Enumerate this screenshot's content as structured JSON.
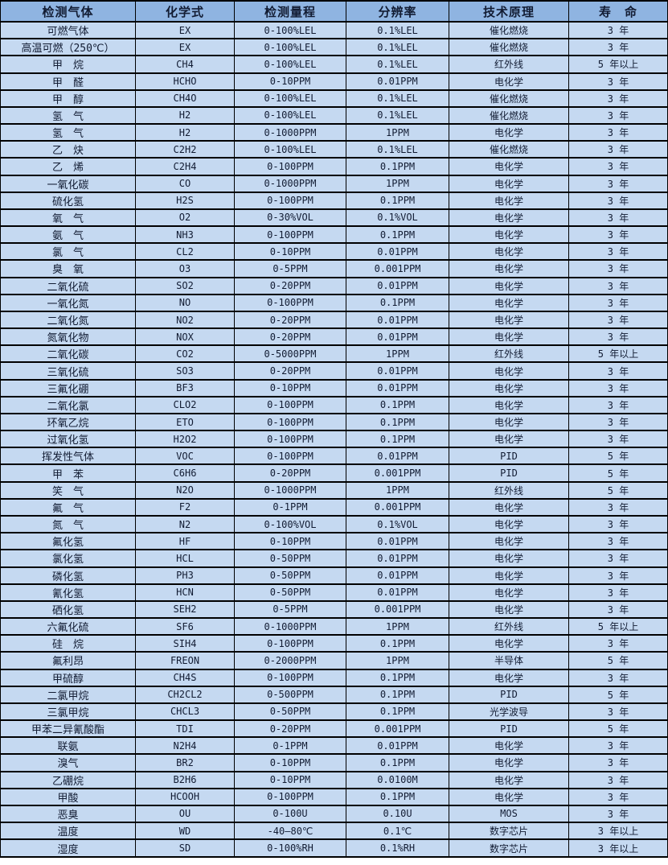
{
  "table": {
    "columns": [
      "检测气体",
      "化学式",
      "检测量程",
      "分辨率",
      "技术原理",
      "寿　命"
    ],
    "rows": [
      [
        "可燃气体",
        "EX",
        "0-100%LEL",
        "0.1%LEL",
        "催化燃烧",
        "3 年"
      ],
      [
        "高温可燃（250℃）",
        "EX",
        "0-100%LEL",
        "0.1%LEL",
        "催化燃烧",
        "3 年"
      ],
      [
        "甲　烷",
        "CH4",
        "0-100%LEL",
        "0.1%LEL",
        "红外线",
        "5 年以上"
      ],
      [
        "甲　醛",
        "HCHO",
        "0-10PPM",
        "0.01PPM",
        "电化学",
        "3 年"
      ],
      [
        "甲　醇",
        "CH4O",
        "0-100%LEL",
        "0.1%LEL",
        "催化燃烧",
        "3 年"
      ],
      [
        "氢　气",
        "H2",
        "0-100%LEL",
        "0.1%LEL",
        "催化燃烧",
        "3 年"
      ],
      [
        "氢　气",
        "H2",
        "0-1000PPM",
        "1PPM",
        "电化学",
        "3 年"
      ],
      [
        "乙　炔",
        "C2H2",
        "0-100%LEL",
        "0.1%LEL",
        "催化燃烧",
        "3 年"
      ],
      [
        "乙　烯",
        "C2H4",
        "0-100PPM",
        "0.1PPM",
        "电化学",
        "3 年"
      ],
      [
        "一氧化碳",
        "CO",
        "0-1000PPM",
        "1PPM",
        "电化学",
        "3 年"
      ],
      [
        "硫化氢",
        "H2S",
        "0-100PPM",
        "0.1PPM",
        "电化学",
        "3 年"
      ],
      [
        "氧　气",
        "O2",
        "0-30%VOL",
        "0.1%VOL",
        "电化学",
        "3 年"
      ],
      [
        "氨　气",
        "NH3",
        "0-100PPM",
        "0.1PPM",
        "电化学",
        "3 年"
      ],
      [
        "氯　气",
        "CL2",
        "0-10PPM",
        "0.01PPM",
        "电化学",
        "3 年"
      ],
      [
        "臭　氧",
        "O3",
        "0-5PPM",
        "0.001PPM",
        "电化学",
        "3 年"
      ],
      [
        "二氧化硫",
        "SO2",
        "0-20PPM",
        "0.01PPM",
        "电化学",
        "3 年"
      ],
      [
        "一氧化氮",
        "NO",
        "0-100PPM",
        "0.1PPM",
        "电化学",
        "3 年"
      ],
      [
        "二氧化氮",
        "NO2",
        "0-20PPM",
        "0.01PPM",
        "电化学",
        "3 年"
      ],
      [
        "氮氧化物",
        "NOX",
        "0-20PPM",
        "0.01PPM",
        "电化学",
        "3 年"
      ],
      [
        "二氧化碳",
        "CO2",
        "0-5000PPM",
        "1PPM",
        "红外线",
        "5 年以上"
      ],
      [
        "三氧化硫",
        "SO3",
        "0-20PPM",
        "0.01PPM",
        "电化学",
        "3 年"
      ],
      [
        "三氟化硼",
        "BF3",
        "0-10PPM",
        "0.01PPM",
        "电化学",
        "3 年"
      ],
      [
        "二氧化氯",
        "CLO2",
        "0-100PPM",
        "0.1PPM",
        "电化学",
        "3 年"
      ],
      [
        "环氧乙烷",
        "ETO",
        "0-100PPM",
        "0.1PPM",
        "电化学",
        "3 年"
      ],
      [
        "过氧化氢",
        "H2O2",
        "0-100PPM",
        "0.1PPM",
        "电化学",
        "3 年"
      ],
      [
        "挥发性气体",
        "VOC",
        "0-100PPM",
        "0.01PPM",
        "PID",
        "5 年"
      ],
      [
        "甲　苯",
        "C6H6",
        "0-20PPM",
        "0.001PPM",
        "PID",
        "5 年"
      ],
      [
        "笑　气",
        "N2O",
        "0-1000PPM",
        "1PPM",
        "红外线",
        "5 年"
      ],
      [
        "氟　气",
        "F2",
        "0-1PPM",
        "0.001PPM",
        "电化学",
        "3 年"
      ],
      [
        "氮　气",
        "N2",
        "0-100%VOL",
        "0.1%VOL",
        "电化学",
        "3 年"
      ],
      [
        "氟化氢",
        "HF",
        "0-10PPM",
        "0.01PPM",
        "电化学",
        "3 年"
      ],
      [
        "氯化氢",
        "HCL",
        "0-50PPM",
        "0.01PPM",
        "电化学",
        "3 年"
      ],
      [
        "磷化氢",
        "PH3",
        "0-50PPM",
        "0.01PPM",
        "电化学",
        "3 年"
      ],
      [
        "氰化氢",
        "HCN",
        "0-50PPM",
        "0.01PPM",
        "电化学",
        "3 年"
      ],
      [
        "硒化氢",
        "SEH2",
        "0-5PPM",
        "0.001PPM",
        "电化学",
        "3 年"
      ],
      [
        "六氟化硫",
        "SF6",
        "0-1000PPM",
        "1PPM",
        "红外线",
        "5 年以上"
      ],
      [
        "硅　烷",
        "SIH4",
        "0-100PPM",
        "0.1PPM",
        "电化学",
        "3 年"
      ],
      [
        "氟利昂",
        "FREON",
        "0-2000PPM",
        "1PPM",
        "半导体",
        "5 年"
      ],
      [
        "甲硫醇",
        "CH4S",
        "0-100PPM",
        "0.1PPM",
        "电化学",
        "3 年"
      ],
      [
        "二氯甲烷",
        "CH2CL2",
        "0-500PPM",
        "0.1PPM",
        "PID",
        "5 年"
      ],
      [
        "三氯甲烷",
        "CHCL3",
        "0-50PPM",
        "0.1PPM",
        "光学波导",
        "3 年"
      ],
      [
        "甲苯二异氰酸酯",
        "TDI",
        "0-20PPM",
        "0.001PPM",
        "PID",
        "5 年"
      ],
      [
        "联氨",
        "N2H4",
        "0-1PPM",
        "0.01PPM",
        "电化学",
        "3 年"
      ],
      [
        "溴气",
        "BR2",
        "0-10PPM",
        "0.1PPM",
        "电化学",
        "3 年"
      ],
      [
        "乙硼烷",
        "B2H6",
        "0-10PPM",
        "0.0100M",
        "电化学",
        "3 年"
      ],
      [
        "甲酸",
        "HCOOH",
        "0-100PPM",
        "0.1PPM",
        "电化学",
        "3 年"
      ],
      [
        "恶臭",
        "OU",
        "0-100U",
        "0.10U",
        "MOS",
        "3 年"
      ],
      [
        "温度",
        "WD",
        "-40—80℃",
        "0.1℃",
        "数字芯片",
        "3 年以上"
      ],
      [
        "湿度",
        "SD",
        "0-100%RH",
        "0.1%RH",
        "数字芯片",
        "3 年以上"
      ]
    ]
  },
  "colors": {
    "header_bg": "#8FB4E1",
    "row_bg": "#C5D9F1",
    "border": "#000000",
    "text": "#121C33"
  }
}
